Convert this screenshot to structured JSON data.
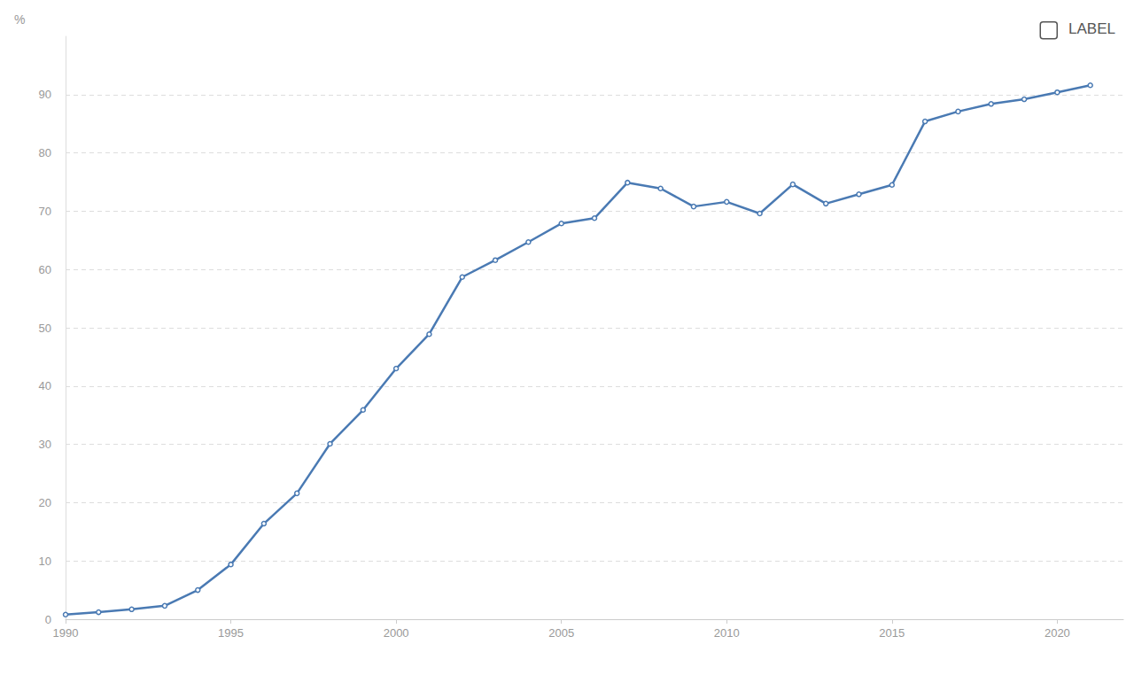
{
  "chart_data": {
    "type": "line",
    "ylabel": "%",
    "annotations": [
      "LABEL"
    ],
    "x": [
      1990,
      1991,
      1992,
      1993,
      1994,
      1995,
      1996,
      1997,
      1998,
      1999,
      2000,
      2001,
      2002,
      2003,
      2004,
      2005,
      2006,
      2007,
      2008,
      2009,
      2010,
      2011,
      2012,
      2013,
      2014,
      2015,
      2016,
      2017,
      2018,
      2019,
      2020,
      2021
    ],
    "values": [
      0.8,
      1.2,
      1.7,
      2.3,
      5.0,
      9.4,
      16.4,
      21.6,
      30.1,
      35.9,
      43.0,
      48.9,
      58.7,
      61.6,
      64.7,
      67.9,
      68.8,
      74.9,
      73.9,
      70.8,
      71.6,
      69.6,
      74.6,
      71.3,
      72.9,
      74.5,
      85.4,
      87.1,
      88.4,
      89.2,
      90.4,
      91.6
    ],
    "color": "#4a7ab3",
    "marker": "circle",
    "line_style": "solid",
    "xlim": [
      1990,
      2022
    ],
    "xticks": [
      1990,
      1995,
      2000,
      2005,
      2010,
      2015,
      2020
    ],
    "ylim": [
      0,
      100
    ],
    "yticks": [
      0,
      10,
      20,
      30,
      40,
      50,
      60,
      70,
      80,
      90
    ],
    "grid": true
  }
}
